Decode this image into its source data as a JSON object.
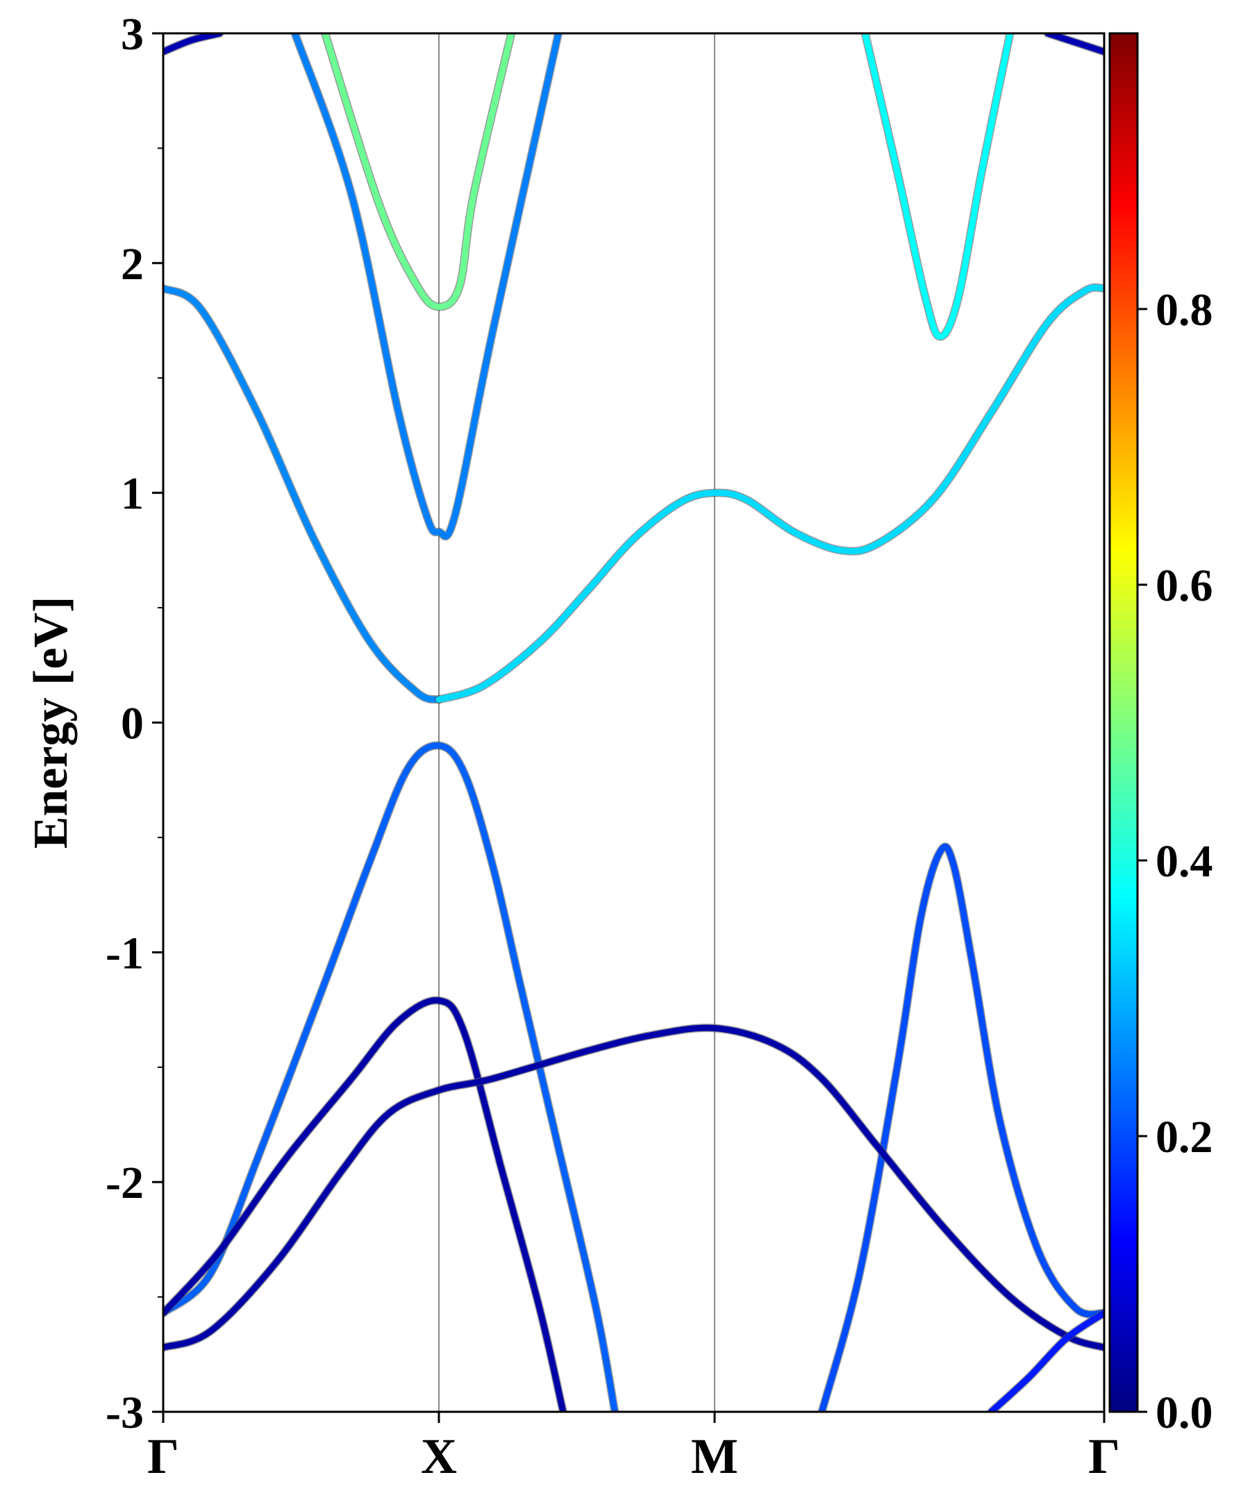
{
  "chart_data": {
    "type": "line",
    "title": "",
    "xlabel": "",
    "ylabel": "Energy [eV]",
    "ylim": [
      -3,
      3
    ],
    "grid": false,
    "x_ticks": [
      {
        "label": "Γ",
        "k": 0.0
      },
      {
        "label": "X",
        "k": 0.293
      },
      {
        "label": "M",
        "k": 0.586
      },
      {
        "label": "Γ",
        "k": 1.0
      }
    ],
    "y_ticks": [
      "3",
      "2",
      "1",
      "0",
      "-1",
      "-2",
      "-3"
    ],
    "y_tick_values": [
      3,
      2,
      1,
      0,
      -1,
      -2,
      -3
    ],
    "colorbar": {
      "colormap": "jet",
      "range": [
        0.0,
        1.0
      ],
      "ticks": [
        0.0,
        0.2,
        0.4,
        0.6,
        0.8
      ],
      "tick_labels": [
        "0.0",
        "0.2",
        "0.4",
        "0.6",
        "0.8"
      ],
      "colormap_stops": [
        "#00007f",
        "#0000ff",
        "#007fff",
        "#00ffff",
        "#7fff7f",
        "#ffff00",
        "#ff7f00",
        "#ff0000",
        "#7f0000"
      ]
    },
    "series": [
      {
        "weight": 0.26,
        "points": [
          [
            0.0,
            1.89
          ],
          [
            0.04,
            1.8
          ],
          [
            0.1,
            1.35
          ],
          [
            0.16,
            0.8
          ],
          [
            0.22,
            0.35
          ],
          [
            0.27,
            0.13
          ],
          [
            0.293,
            0.1
          ]
        ]
      },
      {
        "weight": 0.34,
        "points": [
          [
            0.293,
            0.1
          ],
          [
            0.34,
            0.16
          ],
          [
            0.4,
            0.35
          ],
          [
            0.45,
            0.57
          ],
          [
            0.5,
            0.8
          ],
          [
            0.55,
            0.96
          ],
          [
            0.586,
            1.0
          ],
          [
            0.62,
            0.97
          ],
          [
            0.67,
            0.83
          ],
          [
            0.72,
            0.75
          ],
          [
            0.76,
            0.78
          ],
          [
            0.82,
            0.98
          ],
          [
            0.88,
            1.35
          ],
          [
            0.94,
            1.74
          ],
          [
            0.98,
            1.88
          ],
          [
            1.0,
            1.89
          ]
        ]
      },
      {
        "weight": 0.25,
        "points": [
          [
            0.14,
            3.0
          ],
          [
            0.2,
            2.3
          ],
          [
            0.25,
            1.35
          ],
          [
            0.28,
            0.9
          ],
          [
            0.293,
            0.83
          ],
          [
            0.31,
            0.9
          ],
          [
            0.35,
            1.7
          ],
          [
            0.42,
            3.0
          ]
        ]
      },
      {
        "weight": 0.48,
        "points": [
          [
            0.172,
            3.0
          ],
          [
            0.23,
            2.25
          ],
          [
            0.27,
            1.9
          ],
          [
            0.293,
            1.81
          ],
          [
            0.315,
            1.9
          ],
          [
            0.33,
            2.3
          ],
          [
            0.37,
            3.0
          ]
        ]
      },
      {
        "weight": 0.38,
        "points": [
          [
            0.746,
            3.0
          ],
          [
            0.78,
            2.4
          ],
          [
            0.81,
            1.85
          ],
          [
            0.826,
            1.68
          ],
          [
            0.845,
            1.85
          ],
          [
            0.87,
            2.4
          ],
          [
            0.9,
            3.0
          ]
        ]
      },
      {
        "weight": 0.05,
        "points": [
          [
            0.0,
            2.92
          ],
          [
            0.03,
            2.97
          ],
          [
            0.06,
            3.0
          ]
        ]
      },
      {
        "weight": 0.05,
        "points": [
          [
            0.94,
            3.0
          ],
          [
            0.97,
            2.96
          ],
          [
            1.0,
            2.92
          ]
        ]
      },
      {
        "weight": 0.22,
        "points": [
          [
            0.0,
            -2.57
          ],
          [
            0.05,
            -2.4
          ],
          [
            0.1,
            -1.9
          ],
          [
            0.17,
            -1.15
          ],
          [
            0.22,
            -0.6
          ],
          [
            0.26,
            -0.2
          ],
          [
            0.293,
            -0.1
          ],
          [
            0.32,
            -0.22
          ],
          [
            0.35,
            -0.62
          ],
          [
            0.38,
            -1.15
          ],
          [
            0.42,
            -1.85
          ],
          [
            0.46,
            -2.55
          ],
          [
            0.48,
            -3.0
          ]
        ]
      },
      {
        "weight": 0.2,
        "points": [
          [
            0.7,
            -3.0
          ],
          [
            0.74,
            -2.4
          ],
          [
            0.78,
            -1.5
          ],
          [
            0.805,
            -0.85
          ],
          [
            0.826,
            -0.56
          ],
          [
            0.84,
            -0.62
          ],
          [
            0.86,
            -1.05
          ],
          [
            0.89,
            -1.75
          ],
          [
            0.93,
            -2.3
          ],
          [
            0.97,
            -2.55
          ],
          [
            1.0,
            -2.57
          ]
        ]
      },
      {
        "weight": 0.04,
        "points": [
          [
            0.0,
            -2.57
          ],
          [
            0.06,
            -2.3
          ],
          [
            0.13,
            -1.9
          ],
          [
            0.2,
            -1.55
          ],
          [
            0.25,
            -1.3
          ],
          [
            0.293,
            -1.21
          ],
          [
            0.32,
            -1.35
          ],
          [
            0.36,
            -1.95
          ],
          [
            0.4,
            -2.55
          ],
          [
            0.425,
            -3.0
          ]
        ]
      },
      {
        "weight": 0.04,
        "points": [
          [
            0.0,
            -2.72
          ],
          [
            0.05,
            -2.65
          ],
          [
            0.12,
            -2.35
          ],
          [
            0.19,
            -1.95
          ],
          [
            0.24,
            -1.7
          ],
          [
            0.293,
            -1.6
          ],
          [
            0.35,
            -1.55
          ],
          [
            0.45,
            -1.43
          ],
          [
            0.52,
            -1.36
          ],
          [
            0.586,
            -1.33
          ],
          [
            0.65,
            -1.4
          ],
          [
            0.7,
            -1.55
          ],
          [
            0.76,
            -1.85
          ],
          [
            0.83,
            -2.2
          ],
          [
            0.9,
            -2.5
          ],
          [
            0.96,
            -2.67
          ],
          [
            1.0,
            -2.72
          ]
        ]
      },
      {
        "weight": 0.15,
        "points": [
          [
            0.88,
            -3.0
          ],
          [
            0.92,
            -2.85
          ],
          [
            0.96,
            -2.68
          ],
          [
            1.0,
            -2.57
          ]
        ]
      }
    ]
  }
}
